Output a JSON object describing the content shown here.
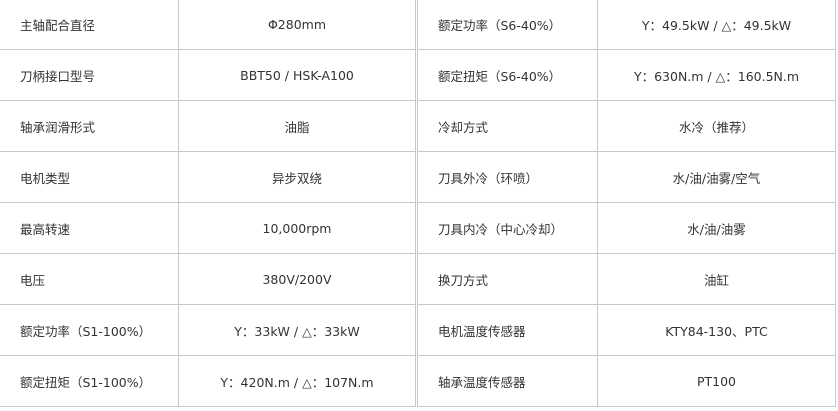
{
  "left_table": [
    {
      "label": "主轴配合直径",
      "value": "Φ280mm"
    },
    {
      "label": "刀柄接口型号",
      "value": "BBT50 / HSK-A100"
    },
    {
      "label": "轴承润滑形式",
      "value": "油脂"
    },
    {
      "label": "电机类型",
      "value": "异步双绕"
    },
    {
      "label": "最高转速",
      "value": "10,000rpm"
    },
    {
      "label": "电压",
      "value": "380V/200V"
    },
    {
      "label": "额定功率（S1-100%）",
      "value": "Y：33kW / △：33kW"
    },
    {
      "label": "额定扭矩（S1-100%）",
      "value": "Y：420N.m / △：107N.m"
    }
  ],
  "right_table": [
    {
      "label": "额定功率（S6-40%）",
      "value": "Y：49.5kW / △：49.5kW"
    },
    {
      "label": "额定扭矩（S6-40%）",
      "value": "Y：630N.m / △：160.5N.m"
    },
    {
      "label": "冷却方式",
      "value": "水冷（推荐）"
    },
    {
      "label": "刀具外冷（环喷）",
      "value": "水/油/油雾/空气"
    },
    {
      "label": "刀具内冷（中心冷却）",
      "value": "水/油/油雾"
    },
    {
      "label": "换刀方式",
      "value": "油缸"
    },
    {
      "label": "电机温度传感器",
      "value": "KTY84-130、PTC"
    },
    {
      "label": "轴承温度传感器",
      "value": "PT100"
    }
  ]
}
